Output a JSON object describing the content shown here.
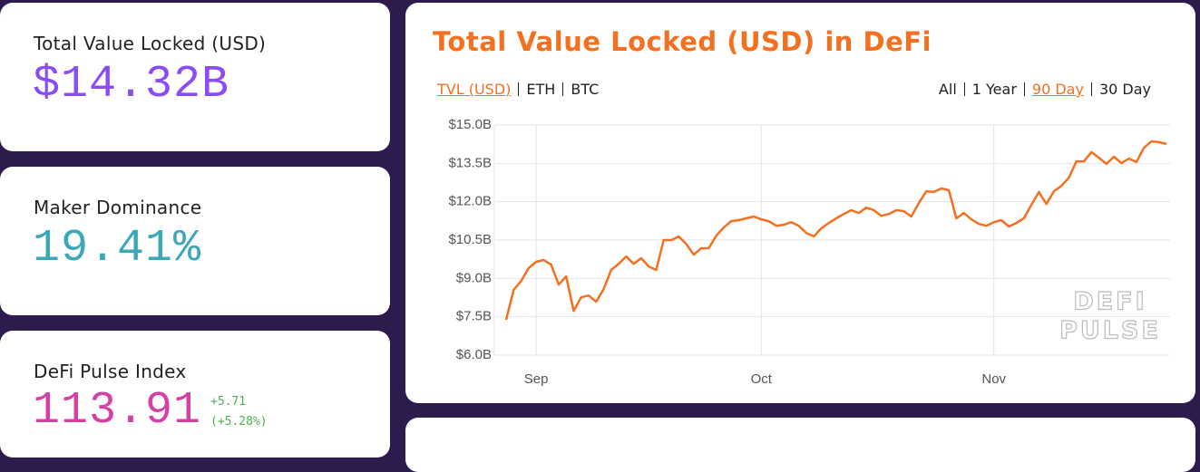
{
  "cards": [
    {
      "label": "Total Value Locked (USD)",
      "value": "$14.32B"
    },
    {
      "label": "Maker Dominance",
      "value": "19.41%"
    },
    {
      "label": "DeFi Pulse Index",
      "value": "113.91",
      "change": "+5.71",
      "change_pct": "(+5.28%)"
    }
  ],
  "chart_data": {
    "type": "line",
    "title": "Total Value Locked (USD) in DeFi",
    "currency_options": [
      "TVL (USD)",
      "ETH",
      "BTC"
    ],
    "selected_currency": 0,
    "range_options": [
      "All",
      "1 Year",
      "90 Day",
      "30 Day"
    ],
    "selected_range": 2,
    "watermark": [
      "DEFI",
      "PULSE"
    ],
    "color": "#f37021",
    "grid": true,
    "ylim": [
      6,
      15
    ],
    "yticks": [
      {
        "value": 6,
        "label": "$6.0B"
      },
      {
        "value": 7.5,
        "label": "$7.5B"
      },
      {
        "value": 9,
        "label": "$9.0B"
      },
      {
        "value": 10.5,
        "label": "$10.5B"
      },
      {
        "value": 12,
        "label": "$12.0B"
      },
      {
        "value": 13.5,
        "label": "$13.5B"
      },
      {
        "value": 15,
        "label": "$15.0B"
      }
    ],
    "categories": [
      null,
      null,
      null,
      null,
      "Sep",
      null,
      null,
      null,
      null,
      null,
      null,
      null,
      null,
      null,
      null,
      null,
      null,
      null,
      null,
      null,
      null,
      null,
      null,
      null,
      null,
      null,
      null,
      null,
      null,
      null,
      null,
      null,
      null,
      null,
      "Oct",
      null,
      null,
      null,
      null,
      null,
      null,
      null,
      null,
      null,
      null,
      null,
      null,
      null,
      null,
      null,
      null,
      null,
      null,
      null,
      null,
      null,
      null,
      null,
      null,
      null,
      null,
      null,
      null,
      null,
      null,
      "Nov",
      null,
      null,
      null,
      null,
      null,
      null,
      null,
      null,
      null,
      null,
      null,
      null,
      null,
      null,
      null,
      null,
      null,
      null,
      null,
      null,
      null,
      null,
      null
    ],
    "values": [
      7.38,
      8.55,
      8.9,
      9.4,
      9.65,
      9.72,
      9.54,
      8.76,
      9.08,
      7.73,
      8.26,
      8.33,
      8.09,
      8.58,
      9.33,
      9.57,
      9.86,
      9.57,
      9.79,
      9.47,
      9.33,
      10.5,
      10.5,
      10.64,
      10.35,
      9.93,
      10.18,
      10.18,
      10.67,
      10.99,
      11.24,
      11.28,
      11.35,
      11.42,
      11.31,
      11.24,
      11.06,
      11.1,
      11.2,
      11.06,
      10.78,
      10.64,
      10.96,
      11.17,
      11.35,
      11.52,
      11.67,
      11.56,
      11.77,
      11.67,
      11.45,
      11.52,
      11.67,
      11.63,
      11.42,
      11.95,
      12.41,
      12.38,
      12.52,
      12.45,
      11.35,
      11.56,
      11.31,
      11.13,
      11.06,
      11.2,
      11.28,
      11.03,
      11.17,
      11.35,
      11.88,
      12.38,
      11.91,
      12.41,
      12.62,
      12.94,
      13.58,
      13.58,
      13.94,
      13.72,
      13.48,
      13.76,
      13.51,
      13.69,
      13.55,
      14.11,
      14.36,
      14.33,
      14.26
    ]
  }
}
